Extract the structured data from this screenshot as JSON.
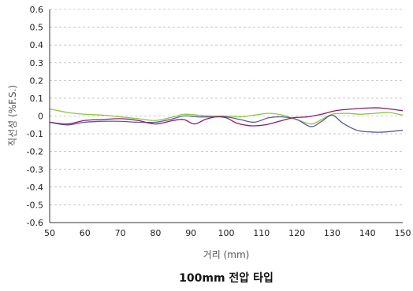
{
  "chart_data": {
    "type": "line",
    "title": "100mm 전압 타입",
    "xlabel": "거리 (mm)",
    "ylabel": "직선성  (%F.S.)",
    "xlim": [
      50,
      150
    ],
    "ylim": [
      -0.6,
      0.6
    ],
    "x_ticks": [
      "50",
      "60",
      "70",
      "80",
      "90",
      "100",
      "110",
      "120",
      "130",
      "140",
      "150"
    ],
    "y_ticks": [
      "0.6",
      "0.5",
      "0.4",
      "0.3",
      "0.2",
      "0.1",
      "0",
      "-0.1",
      "-0.2",
      "-0.3",
      "-0.4",
      "-0.5",
      "-0.6"
    ],
    "grid": true,
    "series": [
      {
        "color": "#8cc63f",
        "points": [
          [
            50,
            0.04
          ],
          [
            55,
            0.02
          ],
          [
            60,
            0.01
          ],
          [
            65,
            0.005
          ],
          [
            70,
            -0.005
          ],
          [
            75,
            -0.015
          ],
          [
            80,
            -0.025
          ],
          [
            85,
            -0.005
          ],
          [
            88,
            0.01
          ],
          [
            92,
            0.005
          ],
          [
            96,
            0.0
          ],
          [
            100,
            0.0
          ],
          [
            104,
            -0.005
          ],
          [
            108,
            0.005
          ],
          [
            112,
            0.015
          ],
          [
            116,
            0.005
          ],
          [
            120,
            -0.02
          ],
          [
            124,
            -0.045
          ],
          [
            127,
            -0.02
          ],
          [
            130,
            0.01
          ],
          [
            134,
            0.015
          ],
          [
            138,
            0.01
          ],
          [
            142,
            0.015
          ],
          [
            146,
            0.02
          ],
          [
            150,
            0.005
          ]
        ]
      },
      {
        "color": "#5a5aa0",
        "points": [
          [
            50,
            -0.035
          ],
          [
            55,
            -0.05
          ],
          [
            60,
            -0.035
          ],
          [
            65,
            -0.03
          ],
          [
            70,
            -0.03
          ],
          [
            75,
            -0.035
          ],
          [
            80,
            -0.035
          ],
          [
            84,
            -0.02
          ],
          [
            88,
            0.0
          ],
          [
            92,
            -0.005
          ],
          [
            96,
            -0.005
          ],
          [
            100,
            -0.005
          ],
          [
            104,
            -0.02
          ],
          [
            108,
            -0.035
          ],
          [
            112,
            -0.01
          ],
          [
            116,
            -0.005
          ],
          [
            120,
            -0.02
          ],
          [
            124,
            -0.06
          ],
          [
            127,
            -0.03
          ],
          [
            130,
            0.005
          ],
          [
            133,
            -0.04
          ],
          [
            137,
            -0.08
          ],
          [
            141,
            -0.09
          ],
          [
            145,
            -0.09
          ],
          [
            150,
            -0.08
          ]
        ]
      },
      {
        "color": "#8b1a6b",
        "points": [
          [
            50,
            -0.035
          ],
          [
            55,
            -0.045
          ],
          [
            60,
            -0.025
          ],
          [
            65,
            -0.02
          ],
          [
            70,
            -0.015
          ],
          [
            75,
            -0.025
          ],
          [
            80,
            -0.045
          ],
          [
            85,
            -0.025
          ],
          [
            88,
            -0.02
          ],
          [
            91,
            -0.045
          ],
          [
            94,
            -0.02
          ],
          [
            97,
            -0.005
          ],
          [
            100,
            -0.01
          ],
          [
            103,
            -0.04
          ],
          [
            107,
            -0.055
          ],
          [
            111,
            -0.05
          ],
          [
            115,
            -0.03
          ],
          [
            119,
            -0.01
          ],
          [
            123,
            -0.005
          ],
          [
            127,
            0.01
          ],
          [
            131,
            0.03
          ],
          [
            136,
            0.04
          ],
          [
            140,
            0.045
          ],
          [
            144,
            0.045
          ],
          [
            150,
            0.03
          ]
        ]
      }
    ]
  }
}
